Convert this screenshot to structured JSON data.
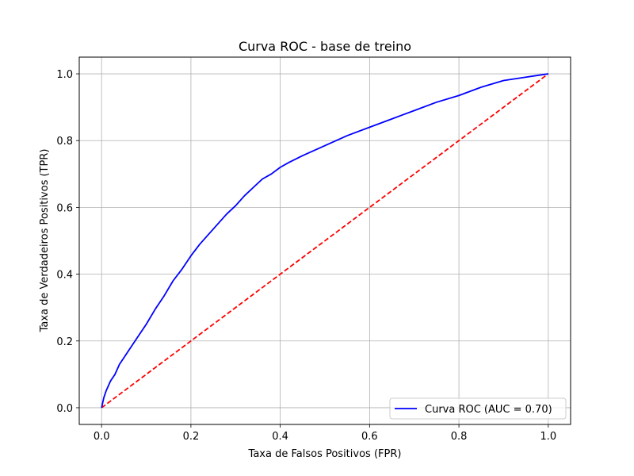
{
  "chart_data": {
    "type": "line",
    "title": "Curva ROC - base de treino",
    "xlabel": "Taxa de Falsos Positivos (FPR)",
    "ylabel": "Taxa de Verdadeiros Positivos (TPR)",
    "xlim": [
      -0.05,
      1.05
    ],
    "ylim": [
      -0.05,
      1.05
    ],
    "xticks": [
      "0.0",
      "0.2",
      "0.4",
      "0.6",
      "0.8",
      "1.0"
    ],
    "yticks": [
      "0.0",
      "0.2",
      "0.4",
      "0.6",
      "0.8",
      "1.0"
    ],
    "grid": true,
    "legend_position": "lower right",
    "series": [
      {
        "name": "Curva ROC (AUC = 0.70)",
        "color": "#0000ff",
        "style": "solid",
        "x": [
          0,
          0.005,
          0.01,
          0.02,
          0.03,
          0.04,
          0.05,
          0.06,
          0.08,
          0.1,
          0.12,
          0.14,
          0.16,
          0.18,
          0.2,
          0.22,
          0.24,
          0.26,
          0.28,
          0.3,
          0.32,
          0.34,
          0.36,
          0.38,
          0.4,
          0.42,
          0.45,
          0.5,
          0.55,
          0.6,
          0.65,
          0.7,
          0.75,
          0.8,
          0.85,
          0.9,
          0.95,
          1.0
        ],
        "y": [
          0,
          0.03,
          0.05,
          0.08,
          0.1,
          0.13,
          0.15,
          0.17,
          0.21,
          0.25,
          0.295,
          0.335,
          0.38,
          0.415,
          0.455,
          0.49,
          0.52,
          0.55,
          0.58,
          0.605,
          0.635,
          0.66,
          0.685,
          0.7,
          0.72,
          0.735,
          0.755,
          0.785,
          0.815,
          0.84,
          0.865,
          0.89,
          0.915,
          0.935,
          0.96,
          0.98,
          0.99,
          1.0
        ]
      },
      {
        "name": "",
        "color": "#ff0000",
        "style": "dashed",
        "x": [
          0,
          1
        ],
        "y": [
          0,
          1
        ]
      }
    ]
  }
}
